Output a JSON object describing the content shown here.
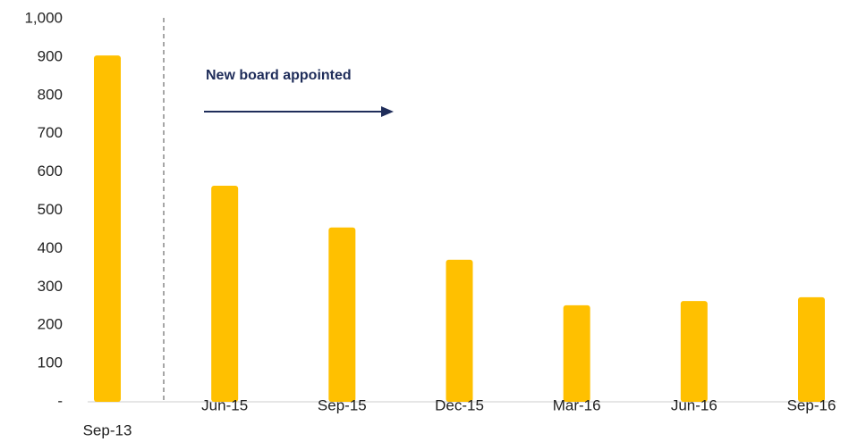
{
  "chart_data": {
    "type": "bar",
    "categories": [
      "Sep-13",
      "Jun-15",
      "Sep-15",
      "Dec-15",
      "Mar-16",
      "Jun-16",
      "Sep-16"
    ],
    "values": [
      904,
      564,
      455,
      371,
      252,
      263,
      273
    ],
    "color": "#ffc000",
    "ylim": [
      0,
      1000
    ],
    "yticks": [
      {
        "value": 0,
        "label": "-"
      },
      100,
      200,
      300,
      400,
      500,
      600,
      700,
      800,
      900,
      {
        "value": 1000,
        "label": "1,000"
      }
    ],
    "grid": false,
    "annotation": "New board appointed"
  }
}
